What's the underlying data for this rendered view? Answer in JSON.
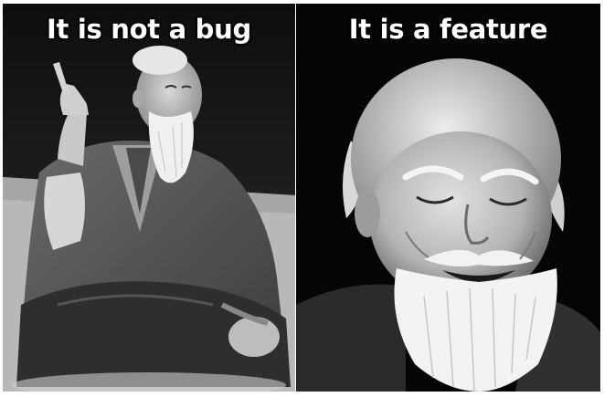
{
  "meme": {
    "left_panel": {
      "caption": "It is not a bug",
      "photo_icon": "elderly-man-pointing-up-photo"
    },
    "right_panel": {
      "caption": "It is a feature",
      "photo_icon": "elderly-man-smiling-photo"
    },
    "colors": {
      "background": "#ffffff",
      "caption_text": "#ffffff"
    }
  }
}
